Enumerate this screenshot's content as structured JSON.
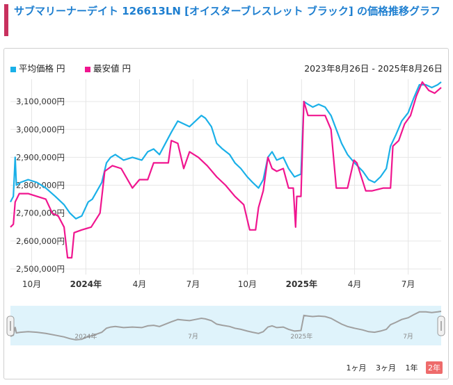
{
  "heading": "サブマリーナーデイト 126613LN [オイスターブレスレット ブラック] の価格推移グラフ",
  "date_range": "2023年8月26日 - 2025年8月26日",
  "range_buttons": [
    "1ヶ月",
    "3ヶ月",
    "1年",
    "2年"
  ],
  "active_range": "2年",
  "colors": {
    "avg": "#1ab0e8",
    "min": "#f0158f",
    "navigator_line": "#a0a0a0",
    "navigator_bg": "#dff3fb",
    "heading_bar": "#c8305e",
    "heading_text": "#1e7fd0"
  },
  "chart_data": {
    "type": "line",
    "ylim": [
      2480000,
      3180000
    ],
    "y_ticks": [
      2500000,
      2600000,
      2700000,
      2800000,
      2900000,
      3000000,
      3100000
    ],
    "y_tick_labels": [
      "2,500,000円",
      "2,600,000円",
      "2,700,000円",
      "2,800,000円",
      "2,900,000円",
      "3,000,000円",
      "3,100,000円"
    ],
    "x_range": [
      "2023-08-26",
      "2025-08-26"
    ],
    "x_ticks": [
      {
        "date": "2023-10-01",
        "label": "10月",
        "bold": false
      },
      {
        "date": "2024-01-01",
        "label": "2024年",
        "bold": true
      },
      {
        "date": "2024-04-01",
        "label": "4月",
        "bold": false
      },
      {
        "date": "2024-07-01",
        "label": "7月",
        "bold": false
      },
      {
        "date": "2024-10-01",
        "label": "10月",
        "bold": false
      },
      {
        "date": "2025-01-01",
        "label": "2025年",
        "bold": true
      },
      {
        "date": "2025-04-01",
        "label": "4月",
        "bold": false
      },
      {
        "date": "2025-07-01",
        "label": "7月",
        "bold": false
      }
    ],
    "navigator_labels": [
      {
        "date": "2024-01-01",
        "label": "2024年"
      },
      {
        "date": "2024-07-01",
        "label": "7月"
      },
      {
        "date": "2025-01-01",
        "label": "2025年"
      },
      {
        "date": "2025-07-01",
        "label": "7月"
      }
    ],
    "series": [
      {
        "name": "平均価格 円",
        "points": [
          [
            "2023-08-26",
            2740000
          ],
          [
            "2023-08-31",
            2760000
          ],
          [
            "2023-09-03",
            2900000
          ],
          [
            "2023-09-05",
            2800000
          ],
          [
            "2023-09-12",
            2810000
          ],
          [
            "2023-09-25",
            2820000
          ],
          [
            "2023-10-10",
            2810000
          ],
          [
            "2023-10-25",
            2790000
          ],
          [
            "2023-11-10",
            2760000
          ],
          [
            "2023-11-25",
            2730000
          ],
          [
            "2023-12-05",
            2700000
          ],
          [
            "2023-12-15",
            2680000
          ],
          [
            "2023-12-25",
            2690000
          ],
          [
            "2024-01-05",
            2740000
          ],
          [
            "2024-01-12",
            2750000
          ],
          [
            "2024-01-20",
            2780000
          ],
          [
            "2024-01-28",
            2810000
          ],
          [
            "2024-02-05",
            2880000
          ],
          [
            "2024-02-12",
            2900000
          ],
          [
            "2024-02-20",
            2910000
          ],
          [
            "2024-03-05",
            2890000
          ],
          [
            "2024-03-20",
            2900000
          ],
          [
            "2024-04-05",
            2890000
          ],
          [
            "2024-04-15",
            2920000
          ],
          [
            "2024-04-25",
            2930000
          ],
          [
            "2024-05-05",
            2910000
          ],
          [
            "2024-05-15",
            2950000
          ],
          [
            "2024-05-25",
            2990000
          ],
          [
            "2024-06-05",
            3030000
          ],
          [
            "2024-06-15",
            3020000
          ],
          [
            "2024-06-25",
            3010000
          ],
          [
            "2024-07-05",
            3030000
          ],
          [
            "2024-07-15",
            3050000
          ],
          [
            "2024-07-22",
            3040000
          ],
          [
            "2024-08-01",
            3010000
          ],
          [
            "2024-08-10",
            2950000
          ],
          [
            "2024-08-20",
            2930000
          ],
          [
            "2024-09-01",
            2910000
          ],
          [
            "2024-09-10",
            2880000
          ],
          [
            "2024-09-20",
            2860000
          ],
          [
            "2024-10-01",
            2830000
          ],
          [
            "2024-10-10",
            2810000
          ],
          [
            "2024-10-20",
            2790000
          ],
          [
            "2024-10-28",
            2820000
          ],
          [
            "2024-11-05",
            2900000
          ],
          [
            "2024-11-12",
            2920000
          ],
          [
            "2024-11-20",
            2890000
          ],
          [
            "2024-12-01",
            2900000
          ],
          [
            "2024-12-10",
            2860000
          ],
          [
            "2024-12-20",
            2830000
          ],
          [
            "2024-12-31",
            2840000
          ],
          [
            "2025-01-05",
            3100000
          ],
          [
            "2025-01-12",
            3090000
          ],
          [
            "2025-01-20",
            3080000
          ],
          [
            "2025-01-30",
            3090000
          ],
          [
            "2025-02-10",
            3080000
          ],
          [
            "2025-02-20",
            3050000
          ],
          [
            "2025-03-01",
            3000000
          ],
          [
            "2025-03-10",
            2950000
          ],
          [
            "2025-03-20",
            2910000
          ],
          [
            "2025-04-01",
            2880000
          ],
          [
            "2025-04-15",
            2850000
          ],
          [
            "2025-04-25",
            2820000
          ],
          [
            "2025-05-05",
            2810000
          ],
          [
            "2025-05-15",
            2830000
          ],
          [
            "2025-05-25",
            2860000
          ],
          [
            "2025-06-01",
            2940000
          ],
          [
            "2025-06-10",
            2980000
          ],
          [
            "2025-06-20",
            3030000
          ],
          [
            "2025-07-01",
            3060000
          ],
          [
            "2025-07-10",
            3110000
          ],
          [
            "2025-07-20",
            3160000
          ],
          [
            "2025-07-31",
            3160000
          ],
          [
            "2025-08-10",
            3150000
          ],
          [
            "2025-08-20",
            3160000
          ],
          [
            "2025-08-26",
            3170000
          ]
        ]
      },
      {
        "name": "最安値 円",
        "points": [
          [
            "2023-08-26",
            2650000
          ],
          [
            "2023-08-31",
            2660000
          ],
          [
            "2023-09-03",
            2740000
          ],
          [
            "2023-09-10",
            2770000
          ],
          [
            "2023-09-25",
            2770000
          ],
          [
            "2023-10-10",
            2760000
          ],
          [
            "2023-10-25",
            2750000
          ],
          [
            "2023-11-05",
            2700000
          ],
          [
            "2023-11-15",
            2690000
          ],
          [
            "2023-11-25",
            2650000
          ],
          [
            "2023-12-01",
            2540000
          ],
          [
            "2023-12-08",
            2540000
          ],
          [
            "2023-12-12",
            2630000
          ],
          [
            "2023-12-25",
            2640000
          ],
          [
            "2024-01-10",
            2650000
          ],
          [
            "2024-01-25",
            2700000
          ],
          [
            "2024-02-02",
            2850000
          ],
          [
            "2024-02-15",
            2870000
          ],
          [
            "2024-03-01",
            2860000
          ],
          [
            "2024-03-20",
            2790000
          ],
          [
            "2024-04-01",
            2820000
          ],
          [
            "2024-04-15",
            2820000
          ],
          [
            "2024-04-25",
            2880000
          ],
          [
            "2024-05-05",
            2880000
          ],
          [
            "2024-05-20",
            2880000
          ],
          [
            "2024-05-25",
            2960000
          ],
          [
            "2024-06-05",
            2950000
          ],
          [
            "2024-06-15",
            2860000
          ],
          [
            "2024-06-25",
            2920000
          ],
          [
            "2024-07-10",
            2900000
          ],
          [
            "2024-07-25",
            2870000
          ],
          [
            "2024-08-10",
            2830000
          ],
          [
            "2024-08-25",
            2800000
          ],
          [
            "2024-09-10",
            2760000
          ],
          [
            "2024-09-25",
            2730000
          ],
          [
            "2024-10-05",
            2640000
          ],
          [
            "2024-10-15",
            2640000
          ],
          [
            "2024-10-20",
            2720000
          ],
          [
            "2024-10-28",
            2780000
          ],
          [
            "2024-11-05",
            2900000
          ],
          [
            "2024-11-12",
            2860000
          ],
          [
            "2024-11-20",
            2850000
          ],
          [
            "2024-12-01",
            2860000
          ],
          [
            "2024-12-10",
            2790000
          ],
          [
            "2024-12-18",
            2790000
          ],
          [
            "2024-12-22",
            2650000
          ],
          [
            "2024-12-24",
            2760000
          ],
          [
            "2024-12-31",
            2760000
          ],
          [
            "2025-01-05",
            3100000
          ],
          [
            "2025-01-12",
            3050000
          ],
          [
            "2025-01-25",
            3050000
          ],
          [
            "2025-02-10",
            3050000
          ],
          [
            "2025-02-20",
            3000000
          ],
          [
            "2025-03-01",
            2790000
          ],
          [
            "2025-03-20",
            2790000
          ],
          [
            "2025-03-31",
            2890000
          ],
          [
            "2025-04-05",
            2880000
          ],
          [
            "2025-04-20",
            2780000
          ],
          [
            "2025-05-01",
            2780000
          ],
          [
            "2025-05-20",
            2790000
          ],
          [
            "2025-06-01",
            2790000
          ],
          [
            "2025-06-05",
            2940000
          ],
          [
            "2025-06-15",
            2960000
          ],
          [
            "2025-06-25",
            3020000
          ],
          [
            "2025-07-05",
            3050000
          ],
          [
            "2025-07-15",
            3120000
          ],
          [
            "2025-07-25",
            3170000
          ],
          [
            "2025-08-05",
            3140000
          ],
          [
            "2025-08-15",
            3130000
          ],
          [
            "2025-08-26",
            3150000
          ]
        ]
      }
    ]
  }
}
